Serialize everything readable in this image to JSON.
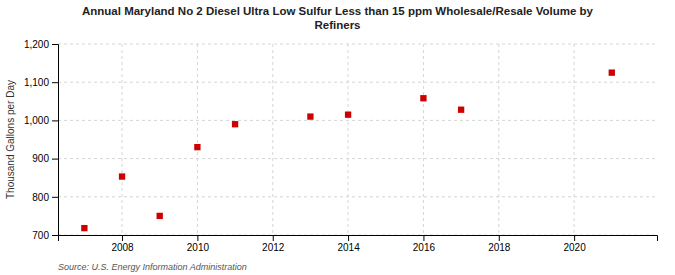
{
  "chart_data": {
    "type": "scatter",
    "title": "Annual Maryland No 2 Diesel Ultra Low Sulfur Less than 15 ppm Wholesale/Resale Volume by\nRefiners",
    "ylabel": "Thousand Gallons per Day",
    "source": "Source: U.S. Energy Information Administration",
    "x": [
      2007,
      2008,
      2009,
      2010,
      2011,
      2013,
      2014,
      2016,
      2017,
      2021
    ],
    "values": [
      718,
      853,
      750,
      930,
      990,
      1010,
      1015,
      1058,
      1028,
      1125
    ],
    "color": "#cc0000",
    "marker": "square",
    "xlim": [
      2006.3,
      2022.2
    ],
    "xticks": [
      2008,
      2010,
      2012,
      2014,
      2016,
      2018,
      2020
    ],
    "ylim": [
      700,
      1200
    ],
    "yticks": [
      700,
      800,
      900,
      {
        "value": 1000,
        "label": "1,000"
      },
      {
        "value": 1100,
        "label": "1,100"
      },
      {
        "value": 1200,
        "label": "1,200"
      }
    ],
    "grid": true
  }
}
